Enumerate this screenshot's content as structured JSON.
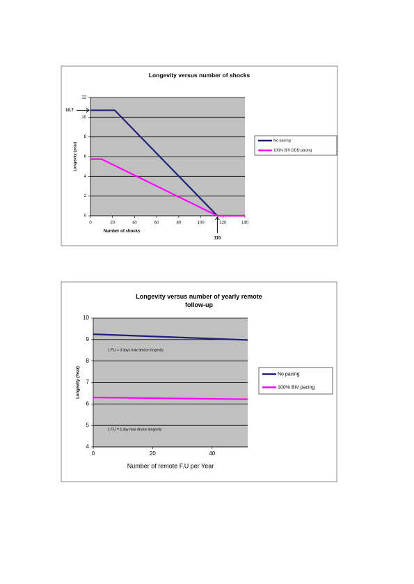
{
  "chart_data": [
    {
      "type": "line",
      "title": "Longevity versus number of shocks",
      "x_label": "Number of shocks",
      "y_label": "Longevity (year)",
      "xlim": [
        0,
        140
      ],
      "xticks": [
        0,
        20,
        40,
        60,
        80,
        100,
        120,
        140
      ],
      "ylim": [
        0,
        12
      ],
      "yticks": [
        0,
        2,
        4,
        6,
        8,
        10,
        12
      ],
      "grid": true,
      "series": [
        {
          "name": "No pacing",
          "color": "#1f1f7a",
          "x": [
            0,
            22,
            115,
            140
          ],
          "values": [
            10.7,
            10.7,
            0,
            0
          ]
        },
        {
          "name": "100% BiV DDD pacing",
          "color": "#ff00ff",
          "x": [
            0,
            10,
            115,
            140
          ],
          "values": [
            5.75,
            5.75,
            0,
            0
          ]
        }
      ],
      "annotations": [
        {
          "text": "10.7",
          "value": 10.7,
          "axis": "y"
        },
        {
          "text": "115",
          "value": 115,
          "axis": "x"
        }
      ]
    },
    {
      "type": "line",
      "title": "Longevity versus number of yearly remote follow-up",
      "x_label": "Number of remote F.U per Year",
      "y_label": "Longevity (Year)",
      "xlim": [
        0,
        52
      ],
      "xticks": [
        0,
        20,
        40
      ],
      "ylim": [
        4,
        10
      ],
      "yticks": [
        4,
        5,
        6,
        7,
        8,
        9,
        10
      ],
      "grid": true,
      "series": [
        {
          "name": "No pacing",
          "color": "#1f1f7a",
          "x": [
            0,
            52
          ],
          "values": [
            9.25,
            8.98
          ]
        },
        {
          "name": "100% BiV pacing",
          "color": "#ff00ff",
          "x": [
            0,
            52
          ],
          "values": [
            6.3,
            6.22
          ]
        }
      ],
      "annotations": [
        {
          "text": "1 F.U = 3 days max device longevity"
        },
        {
          "text": "1 F.U = 1 day max device longevity"
        }
      ]
    }
  ]
}
